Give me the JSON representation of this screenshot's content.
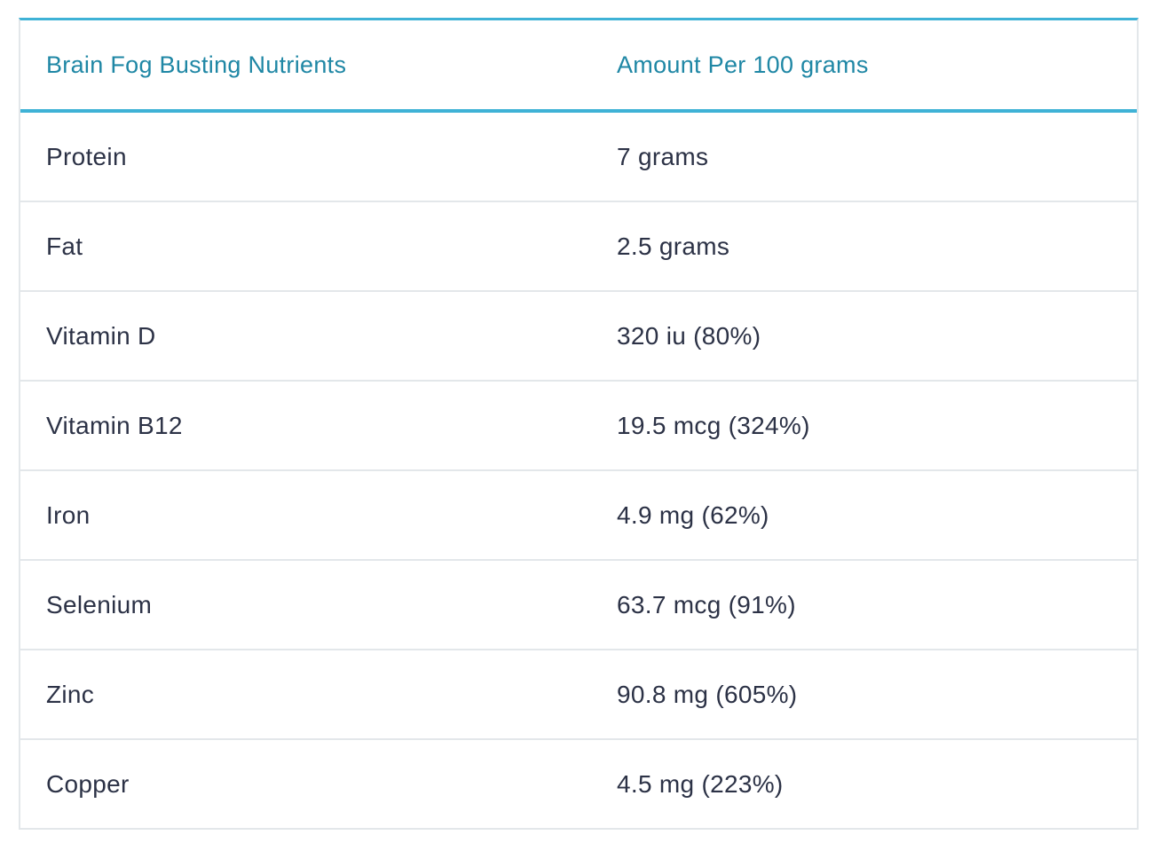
{
  "table": {
    "headers": [
      "Brain Fog Busting Nutrients",
      "Amount Per 100 grams"
    ],
    "rows": [
      [
        "Protein",
        "7 grams"
      ],
      [
        "Fat",
        "2.5 grams"
      ],
      [
        "Vitamin D",
        "320 iu (80%)"
      ],
      [
        "Vitamin B12",
        "19.5 mcg (324%)"
      ],
      [
        "Iron",
        "4.9 mg (62%)"
      ],
      [
        "Selenium",
        "63.7 mcg (91%)"
      ],
      [
        "Zinc",
        "90.8 mg (605%)"
      ],
      [
        "Copper",
        "4.5 mg (223%)"
      ]
    ]
  },
  "colors": {
    "accent": "#3fb2d6",
    "header_text": "#1f87a5",
    "body_text": "#2c3246",
    "border": "#e3e7ea"
  }
}
